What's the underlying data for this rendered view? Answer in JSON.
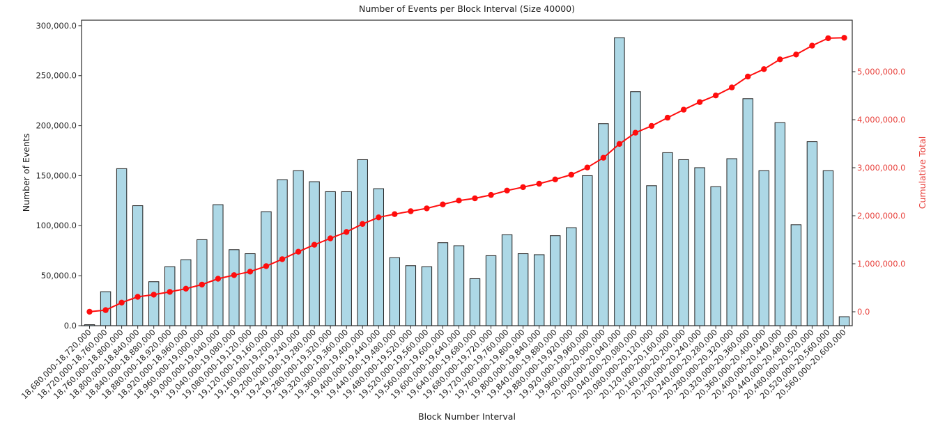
{
  "chart_data": {
    "type": "bar",
    "title": "Number of Events per Block Interval (Size 40000)",
    "xlabel": "Block Number Interval",
    "ylabel_left": "Number of Events",
    "ylabel_right": "Cumulative Total",
    "grid": false,
    "legend": "none",
    "x_tick_rotation_deg": 45,
    "categories": [
      "18,680,000-18,720,000",
      "18,720,000-18,760,000",
      "18,760,000-18,800,000",
      "18,800,000-18,840,000",
      "18,840,000-18,880,000",
      "18,880,000-18,920,000",
      "18,920,000-18,960,000",
      "18,960,000-19,000,000",
      "19,000,000-19,040,000",
      "19,040,000-19,080,000",
      "19,080,000-19,120,000",
      "19,120,000-19,160,000",
      "19,160,000-19,200,000",
      "19,200,000-19,240,000",
      "19,240,000-19,280,000",
      "19,280,000-19,320,000",
      "19,320,000-19,360,000",
      "19,360,000-19,400,000",
      "19,400,000-19,440,000",
      "19,440,000-19,480,000",
      "19,480,000-19,520,000",
      "19,520,000-19,560,000",
      "19,560,000-19,600,000",
      "19,600,000-19,640,000",
      "19,640,000-19,680,000",
      "19,680,000-19,720,000",
      "19,720,000-19,760,000",
      "19,760,000-19,800,000",
      "19,800,000-19,840,000",
      "19,840,000-19,880,000",
      "19,880,000-19,920,000",
      "19,920,000-19,960,000",
      "19,960,000-20,000,000",
      "20,000,000-20,040,000",
      "20,040,000-20,080,000",
      "20,080,000-20,120,000",
      "20,120,000-20,160,000",
      "20,160,000-20,200,000",
      "20,200,000-20,240,000",
      "20,240,000-20,280,000",
      "20,280,000-20,320,000",
      "20,320,000-20,360,000",
      "20,360,000-20,400,000",
      "20,400,000-20,440,000",
      "20,440,000-20,480,000",
      "20,480,000-20,520,000",
      "20,520,000-20,560,000",
      "20,560,000-20,600,000"
    ],
    "series": [
      {
        "name": "Number of Events",
        "type": "bar",
        "values": [
          1000,
          34000,
          157000,
          120000,
          44000,
          59000,
          66000,
          86000,
          121000,
          76000,
          72000,
          114000,
          146000,
          155000,
          144000,
          134000,
          134000,
          166000,
          137000,
          68000,
          60000,
          59000,
          83000,
          80000,
          47000,
          70000,
          91000,
          72000,
          71000,
          90000,
          98000,
          150000,
          202000,
          288000,
          234000,
          140000,
          173000,
          166000,
          158000,
          139000,
          167000,
          227000,
          155000,
          203000,
          101000,
          184000,
          155000,
          9000
        ]
      },
      {
        "name": "Cumulative Total",
        "type": "line",
        "marker": "circle",
        "values": [
          1000,
          35000,
          192000,
          312000,
          356000,
          415000,
          481000,
          567000,
          688000,
          764000,
          836000,
          950000,
          1096000,
          1251000,
          1395000,
          1529000,
          1663000,
          1829000,
          1966000,
          2034000,
          2094000,
          2153000,
          2236000,
          2316000,
          2363000,
          2433000,
          2524000,
          2596000,
          2667000,
          2757000,
          2855000,
          3005000,
          3207000,
          3495000,
          3729000,
          3869000,
          4042000,
          4208000,
          4366000,
          4505000,
          4672000,
          4899000,
          5054000,
          5257000,
          5358000,
          5542000,
          5697000,
          5706000
        ]
      }
    ],
    "y_axis_left": {
      "min": 0,
      "max": 300000,
      "tick_step": 50000,
      "tick_values": [
        0,
        50000,
        100000,
        150000,
        200000,
        250000,
        300000
      ],
      "tick_labels": [
        "0.0",
        "50,000.0",
        "100,000.0",
        "150,000.0",
        "200,000.0",
        "250,000.0",
        "300,000.0"
      ]
    },
    "y_axis_right": {
      "tick_values": [
        0,
        1000000,
        2000000,
        3000000,
        4000000,
        5000000
      ],
      "tick_labels": [
        "0.0",
        "1,000,000.0",
        "2,000,000.0",
        "3,000,000.0",
        "4,000,000.0",
        "5,000,000.0"
      ]
    },
    "colors": {
      "bar_fill": "#ADD8E6",
      "bar_edge": "#1f1f1f",
      "line": "#ff0d0d",
      "marker": "#ff0d0d",
      "right_axis_text": "#e8413c",
      "axis_text": "#262626",
      "spine": "#2b2b2b",
      "background": "#ffffff"
    }
  }
}
